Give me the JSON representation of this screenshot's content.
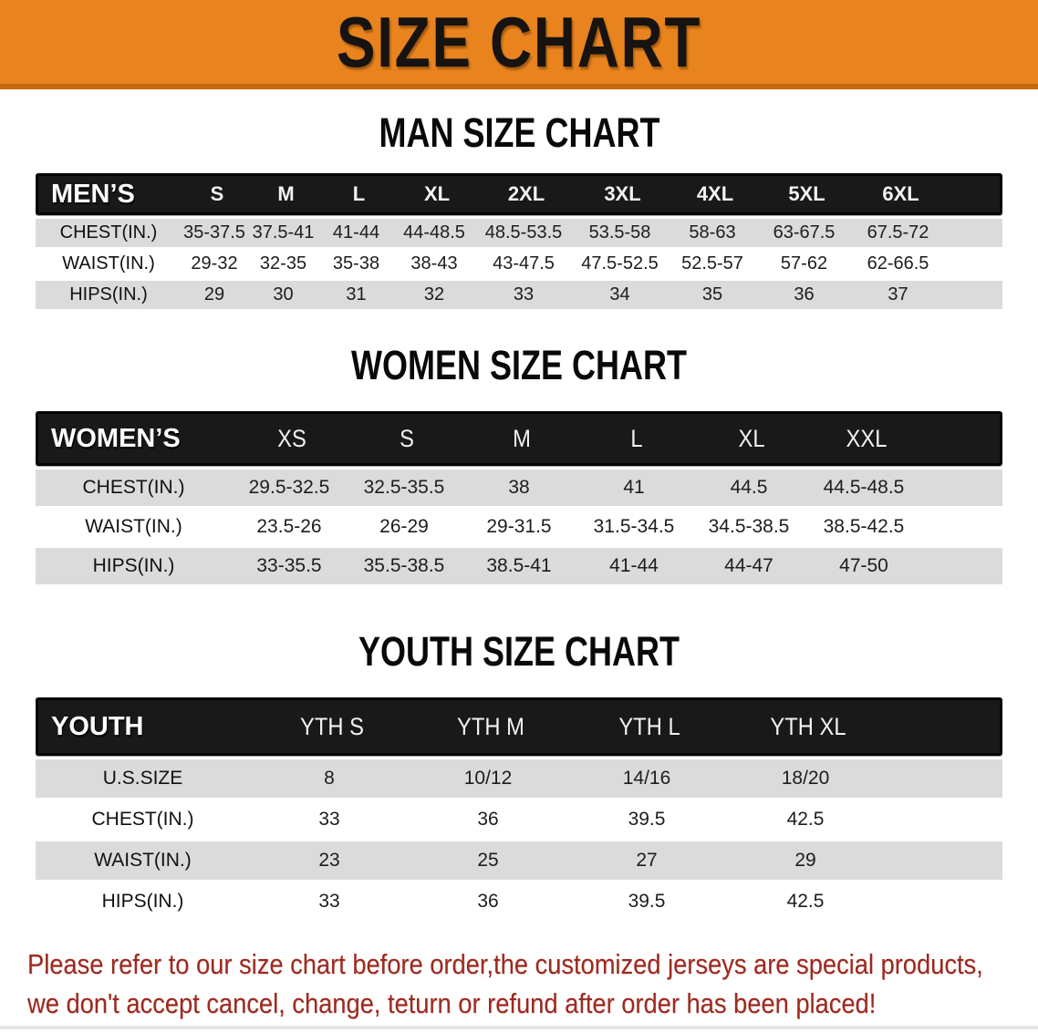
{
  "banner": {
    "title": "SIZE CHART"
  },
  "colors": {
    "banner_orange": "#E8831E",
    "banner_orange_dark_edge": "#C4690D",
    "table_header_black": "#191919",
    "row_gray": "#DBDBDB",
    "footer_red": "#9E2A20"
  },
  "men": {
    "heading": "MAN SIZE CHART",
    "label": "MEN’S",
    "columns": [
      "S",
      "M",
      "L",
      "XL",
      "2XL",
      "3XL",
      "4XL",
      "5XL",
      "6XL"
    ],
    "rows": [
      {
        "label": "CHEST(IN.)",
        "values": [
          "35-37.5",
          "37.5-41",
          "41-44",
          "44-48.5",
          "48.5-53.5",
          "53.5-58",
          "58-63",
          "63-67.5",
          "67.5-72"
        ]
      },
      {
        "label": "WAIST(IN.)",
        "values": [
          "29-32",
          "32-35",
          "35-38",
          "38-43",
          "43-47.5",
          "47.5-52.5",
          "52.5-57",
          "57-62",
          "62-66.5"
        ]
      },
      {
        "label": "HIPS(IN.)",
        "values": [
          "29",
          "30",
          "31",
          "32",
          "33",
          "34",
          "35",
          "36",
          "37"
        ]
      }
    ]
  },
  "women": {
    "heading": "WOMEN SIZE CHART",
    "label": "WOMEN’S",
    "columns": [
      "XS",
      "S",
      "M",
      "L",
      "XL",
      "XXL"
    ],
    "rows": [
      {
        "label": "CHEST(IN.)",
        "values": [
          "29.5-32.5",
          "32.5-35.5",
          "38",
          "41",
          "44.5",
          "44.5-48.5"
        ]
      },
      {
        "label": "WAIST(IN.)",
        "values": [
          "23.5-26",
          "26-29",
          "29-31.5",
          "31.5-34.5",
          "34.5-38.5",
          "38.5-42.5"
        ]
      },
      {
        "label": "HIPS(IN.)",
        "values": [
          "33-35.5",
          "35.5-38.5",
          "38.5-41",
          "41-44",
          "44-47",
          "47-50"
        ]
      }
    ]
  },
  "youth": {
    "heading": "YOUTH SIZE CHART",
    "label": "YOUTH",
    "columns": [
      "YTH S",
      "YTH M",
      "YTH L",
      "YTH XL"
    ],
    "rows": [
      {
        "label": "U.S.SIZE",
        "values": [
          "8",
          "10/12",
          "14/16",
          "18/20"
        ]
      },
      {
        "label": "CHEST(IN.)",
        "values": [
          "33",
          "36",
          "39.5",
          "42.5"
        ]
      },
      {
        "label": "WAIST(IN.)",
        "values": [
          "23",
          "25",
          "27",
          "29"
        ]
      },
      {
        "label": "HIPS(IN.)",
        "values": [
          "33",
          "36",
          "39.5",
          "42.5"
        ]
      }
    ]
  },
  "footer": {
    "line1": "Please refer to our size chart before order,the customized jerseys are special products,",
    "line2": "we don't accept cancel, change, teturn or refund after order has been placed!"
  }
}
